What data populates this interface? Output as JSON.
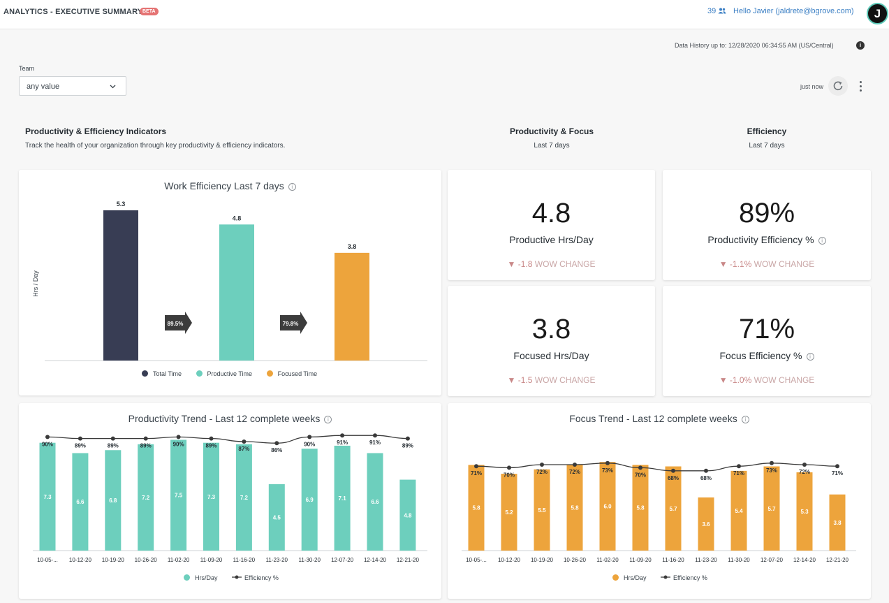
{
  "header": {
    "title": "ANALYTICS - EXECUTIVE SUMMARY",
    "badge": "BETA",
    "user_count": "39",
    "greeting": "Hello Javier (jaldrete@bgrove.com)",
    "avatar_letter": "J"
  },
  "history_text": "Data History up to: 12/28/2020 06:34:55 AM (US/Central)",
  "filter": {
    "label": "Team",
    "value": "any value"
  },
  "refresh_text": "just now",
  "sections": {
    "main_title": "Productivity & Efficiency Indicators",
    "main_subtitle": "Track the health of your organization through key productivity & efficiency indicators.",
    "focus_title": "Productivity & Focus",
    "focus_subtitle": "Last 7 days",
    "efficiency_title": "Efficiency",
    "efficiency_subtitle": "Last 7 days"
  },
  "metrics": {
    "productive_hrs": {
      "value": "4.8",
      "label": "Productive Hrs/Day",
      "change": "-1.8",
      "change_label": "WOW CHANGE"
    },
    "prod_eff": {
      "value": "89%",
      "label": "Productivity Efficiency %",
      "change": "-1.1%",
      "change_label": "WOW CHANGE"
    },
    "focused_hrs": {
      "value": "3.8",
      "label": "Focused Hrs/Day",
      "change": "-1.5",
      "change_label": "WOW CHANGE"
    },
    "focus_eff": {
      "value": "71%",
      "label": "Focus Efficiency %",
      "change": "-1.0%",
      "change_label": "WOW CHANGE"
    }
  },
  "colors": {
    "dark": "#383d54",
    "teal": "#6dcfbd",
    "orange": "#eda43c",
    "line": "#3a3a3a"
  },
  "chart_data": [
    {
      "type": "bar",
      "title": "Work Efficiency Last 7 days",
      "ylabel": "Hrs / Day",
      "categories": [
        "Total Time",
        "Productive Time",
        "Focused Time"
      ],
      "values": [
        5.3,
        4.8,
        3.8
      ],
      "arrows": [
        "89.5%",
        "79.8%"
      ],
      "ylim": [
        0,
        5.3
      ],
      "legend": "bottom"
    },
    {
      "type": "bar",
      "title": "Productivity Trend - Last 12 complete weeks",
      "categories": [
        "10-05-...",
        "10-12-20",
        "10-19-20",
        "10-26-20",
        "11-02-20",
        "11-09-20",
        "11-16-20",
        "11-23-20",
        "11-30-20",
        "12-07-20",
        "12-14-20",
        "12-21-20"
      ],
      "series": [
        {
          "name": "Hrs/Day",
          "type": "bar",
          "values": [
            7.3,
            6.6,
            6.8,
            7.2,
            7.5,
            7.3,
            7.2,
            4.5,
            6.9,
            7.1,
            6.6,
            4.8
          ]
        },
        {
          "name": "Efficiency %",
          "type": "line",
          "values": [
            90,
            89,
            89,
            89,
            90,
            89,
            87,
            86,
            90,
            91,
            91,
            89
          ]
        }
      ],
      "legend": "bottom"
    },
    {
      "type": "bar",
      "title": "Focus Trend - Last 12 complete weeks",
      "categories": [
        "10-05-...",
        "10-12-20",
        "10-19-20",
        "10-26-20",
        "11-02-20",
        "11-09-20",
        "11-16-20",
        "11-23-20",
        "11-30-20",
        "12-07-20",
        "12-14-20",
        "12-21-20"
      ],
      "series": [
        {
          "name": "Hrs/Day",
          "type": "bar",
          "values": [
            5.8,
            5.2,
            5.5,
            5.8,
            6.0,
            5.8,
            5.7,
            3.6,
            5.4,
            5.7,
            5.3,
            3.8
          ]
        },
        {
          "name": "Efficiency %",
          "type": "line",
          "values": [
            71,
            70,
            72,
            72,
            73,
            70,
            68,
            68,
            71,
            73,
            72,
            71
          ]
        }
      ],
      "legend": "bottom"
    }
  ]
}
